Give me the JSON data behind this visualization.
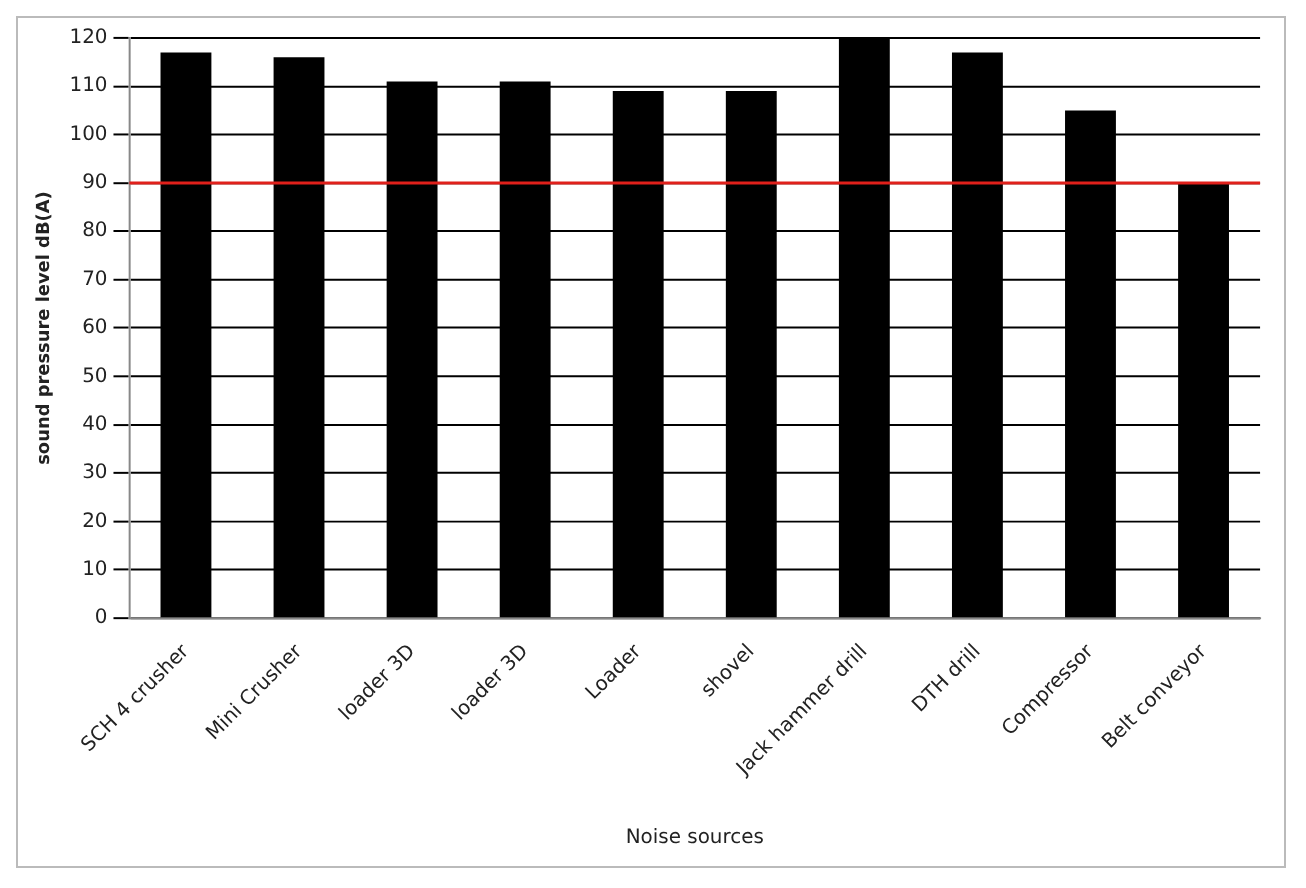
{
  "chart_data": {
    "type": "bar",
    "xlabel": "Noise sources",
    "ylabel": "sound pressure level dB(A)",
    "categories": [
      "SCH 4 crusher",
      "Mini Crusher",
      "loader 3D",
      "loader 3D",
      "Loader",
      "shovel",
      "Jack hammer drill",
      "DTH drill",
      "Compressor",
      "Belt conveyor"
    ],
    "values": [
      117,
      116,
      111,
      111,
      109,
      109,
      120,
      117,
      105,
      90
    ],
    "color": "#000000",
    "ylim": [
      0,
      120
    ],
    "yticks": [
      0,
      10,
      20,
      30,
      40,
      50,
      60,
      70,
      80,
      90,
      100,
      110,
      120
    ],
    "grid": "y",
    "ref_lines": [
      {
        "axis": "y",
        "value": 90,
        "color": "#e0201b"
      }
    ]
  }
}
